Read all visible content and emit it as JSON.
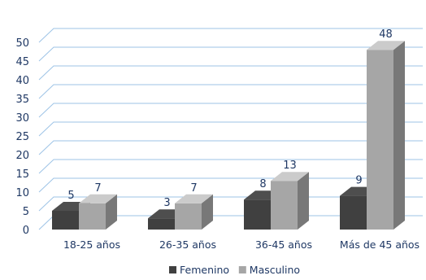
{
  "chart_data": {
    "type": "bar",
    "categories": [
      "18-25 años",
      "26-35 años",
      "36-45 años",
      "Más de 45 años"
    ],
    "series": [
      {
        "name": "Femenino",
        "values": [
          5,
          3,
          8,
          9
        ],
        "color": "#404040"
      },
      {
        "name": "Masculino",
        "values": [
          7,
          7,
          13,
          48
        ],
        "color": "#a6a6a6"
      }
    ],
    "ylim": [
      0,
      50
    ],
    "yticks": [
      0,
      5,
      10,
      15,
      20,
      25,
      30,
      35,
      40,
      45,
      50
    ],
    "grid": true,
    "legend_position": "bottom",
    "gridline_color": "#9dc3e6",
    "text_color": "#1f3864"
  }
}
